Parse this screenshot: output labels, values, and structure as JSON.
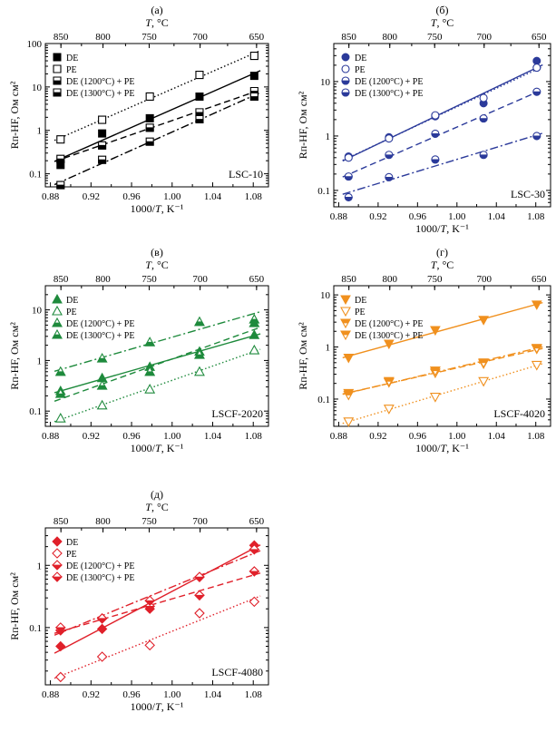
{
  "chart_data": [
    {
      "type": "scatter",
      "panel_label": "(а)",
      "sample_label": "LSC-10",
      "color": "#000000",
      "top_axis_label": "T, °C",
      "xlabel": "1000/T, K⁻¹",
      "ylabel": "Rп-HF, Ом см²",
      "xlim": [
        0.875,
        1.095
      ],
      "ylim": [
        0.05,
        100
      ],
      "yscale": "log",
      "x_ticks": [
        "0.88",
        "0.92",
        "0.96",
        "1.00",
        "1.04",
        "1.08"
      ],
      "y_ticks": [
        "0.1",
        "1",
        "10",
        "100"
      ],
      "top_ticks": [
        "850",
        "800",
        "750",
        "700",
        "650"
      ],
      "legend_position": "top-left",
      "series": [
        {
          "name": "DE",
          "marker": "filled",
          "line": "solid",
          "x": [
            0.89,
            0.931,
            0.978,
            1.027,
            1.081
          ],
          "y": [
            0.16,
            0.85,
            1.9,
            6.0,
            18
          ]
        },
        {
          "name": "PE",
          "marker": "open",
          "line": "dotted",
          "x": [
            0.89,
            0.931,
            0.978,
            1.027,
            1.081
          ],
          "y": [
            0.62,
            1.75,
            6.0,
            19,
            52
          ]
        },
        {
          "name": "DE (1200°C) + PE",
          "marker": "half",
          "line": "dashed",
          "x": [
            0.89,
            0.931,
            0.978,
            1.027,
            1.081
          ],
          "y": [
            0.22,
            0.45,
            1.15,
            2.6,
            8.0
          ]
        },
        {
          "name": "DE (1300°C) + PE",
          "marker": "half",
          "line": "dashdot",
          "x": [
            0.89,
            0.931,
            0.978,
            1.027,
            1.081
          ],
          "y": [
            0.055,
            0.21,
            0.55,
            1.8,
            6.0
          ]
        }
      ]
    },
    {
      "type": "scatter",
      "panel_label": "(б)",
      "sample_label": "LSC-30",
      "color": "#2b3a9a",
      "top_axis_label": "T, °C",
      "xlabel": "1000/T, K⁻¹",
      "ylabel": "Rп-HF, Ом см²",
      "xlim": [
        0.875,
        1.095
      ],
      "ylim": [
        0.05,
        50
      ],
      "yscale": "log",
      "x_ticks": [
        "0.88",
        "0.92",
        "0.96",
        "1.00",
        "1.04",
        "1.08"
      ],
      "y_ticks": [
        "0.1",
        "1",
        "10"
      ],
      "top_ticks": [
        "850",
        "800",
        "750",
        "700",
        "650"
      ],
      "legend_position": "top-left",
      "series": [
        {
          "name": "DE",
          "marker": "filled",
          "line": "solid",
          "x": [
            0.89,
            0.931,
            0.978,
            1.027,
            1.081
          ],
          "y": [
            0.42,
            0.95,
            2.3,
            4.0,
            24
          ]
        },
        {
          "name": "PE",
          "marker": "open",
          "line": "dotted",
          "x": [
            0.89,
            0.931,
            0.978,
            1.027,
            1.081
          ],
          "y": [
            0.4,
            0.9,
            2.4,
            5.0,
            18
          ]
        },
        {
          "name": "DE (1200°C) + PE",
          "marker": "half",
          "line": "dashed",
          "x": [
            0.89,
            0.931,
            0.978,
            1.027,
            1.081
          ],
          "y": [
            0.18,
            0.45,
            1.1,
            2.1,
            6.5
          ]
        },
        {
          "name": "DE (1300°C) + PE",
          "marker": "half",
          "line": "dashdot",
          "x": [
            0.89,
            0.931,
            0.978,
            1.027,
            1.081
          ],
          "y": [
            0.075,
            0.175,
            0.37,
            0.45,
            1.0
          ]
        }
      ]
    },
    {
      "type": "scatter",
      "panel_label": "(в)",
      "sample_label": "LSCF-2020",
      "color": "#1e8a3c",
      "top_axis_label": "T, °C",
      "xlabel": "1000/T, K⁻¹",
      "ylabel": "Rп-HF, Ом см²",
      "xlim": [
        0.875,
        1.095
      ],
      "ylim": [
        0.05,
        30
      ],
      "yscale": "log",
      "x_ticks": [
        "0.88",
        "0.92",
        "0.96",
        "1.00",
        "1.04",
        "1.08"
      ],
      "y_ticks": [
        "0.1",
        "1",
        "10"
      ],
      "top_ticks": [
        "850",
        "800",
        "750",
        "700",
        "650"
      ],
      "legend_position": "top-left",
      "series": [
        {
          "name": "DE",
          "marker": "filled",
          "line": "solid",
          "x": [
            0.89,
            0.931,
            0.978,
            1.027,
            1.081
          ],
          "y": [
            0.25,
            0.45,
            0.75,
            1.5,
            3.2
          ]
        },
        {
          "name": "PE",
          "marker": "open",
          "line": "dotted",
          "x": [
            0.89,
            0.931,
            0.978,
            1.027,
            1.081
          ],
          "y": [
            0.072,
            0.13,
            0.27,
            0.6,
            1.6
          ]
        },
        {
          "name": "DE (1200°C) + PE",
          "marker": "half",
          "line": "dashed",
          "x": [
            0.89,
            0.931,
            0.978,
            1.027,
            1.081
          ],
          "y": [
            0.22,
            0.32,
            0.6,
            1.3,
            5.5
          ]
        },
        {
          "name": "DE (1300°C) + PE",
          "marker": "half",
          "line": "dashdot",
          "x": [
            0.89,
            0.931,
            0.978,
            1.027,
            1.081
          ],
          "y": [
            0.6,
            1.1,
            2.3,
            5.8,
            6.5
          ]
        }
      ]
    },
    {
      "type": "scatter",
      "panel_label": "(г)",
      "sample_label": "LSCF-4020",
      "color": "#f0901e",
      "top_axis_label": "T, °C",
      "xlabel": "1000/T, K⁻¹",
      "ylabel": "Rп-HF, Ом см²",
      "xlim": [
        0.875,
        1.095
      ],
      "ylim": [
        0.03,
        15
      ],
      "yscale": "log",
      "x_ticks": [
        "0.88",
        "0.92",
        "0.96",
        "1.00",
        "1.04",
        "1.08"
      ],
      "y_ticks": [
        "0.1",
        "1",
        "10"
      ],
      "top_ticks": [
        "850",
        "800",
        "750",
        "700",
        "650"
      ],
      "legend_position": "top-left",
      "series": [
        {
          "name": "DE",
          "marker": "filled",
          "line": "solid",
          "x": [
            0.89,
            0.931,
            0.978,
            1.027,
            1.081
          ],
          "y": [
            0.62,
            1.15,
            2.1,
            3.3,
            6.5
          ]
        },
        {
          "name": "PE",
          "marker": "open",
          "line": "dotted",
          "x": [
            0.89,
            0.931,
            0.978,
            1.027,
            1.081
          ],
          "y": [
            0.037,
            0.065,
            0.11,
            0.22,
            0.45
          ]
        },
        {
          "name": "DE (1200°C) + PE",
          "marker": "half",
          "line": "dashed",
          "x": [
            0.89,
            0.931,
            0.978,
            1.027,
            1.081
          ],
          "y": [
            0.13,
            0.21,
            0.32,
            0.48,
            0.92
          ]
        },
        {
          "name": "DE (1300°C) + PE",
          "marker": "half",
          "line": "dashdot",
          "x": [
            0.89,
            0.931,
            0.978,
            1.027,
            1.081
          ],
          "y": [
            0.12,
            0.22,
            0.35,
            0.5,
            0.95
          ]
        }
      ]
    },
    {
      "type": "scatter",
      "panel_label": "(д)",
      "sample_label": "LSCF-4080",
      "color": "#e0202a",
      "top_axis_label": "T, °C",
      "xlabel": "1000/T, K⁻¹",
      "ylabel": "Rп-HF, Ом см²",
      "xlim": [
        0.875,
        1.095
      ],
      "ylim": [
        0.012,
        4
      ],
      "yscale": "log",
      "x_ticks": [
        "0.88",
        "0.92",
        "0.96",
        "1.00",
        "1.04",
        "1.08"
      ],
      "y_ticks": [
        "0.1",
        "1"
      ],
      "top_ticks": [
        "850",
        "800",
        "750",
        "700",
        "650"
      ],
      "legend_position": "top-left",
      "series": [
        {
          "name": "DE",
          "marker": "filled",
          "line": "solid",
          "x": [
            0.89,
            0.931,
            0.978,
            1.027,
            1.081
          ],
          "y": [
            0.05,
            0.095,
            0.2,
            0.65,
            2.1
          ]
        },
        {
          "name": "PE",
          "marker": "open",
          "line": "dotted",
          "x": [
            0.89,
            0.931,
            0.978,
            1.027,
            1.081
          ],
          "y": [
            0.016,
            0.034,
            0.052,
            0.17,
            0.26
          ]
        },
        {
          "name": "DE (1200°C) + PE",
          "marker": "half",
          "line": "dashed",
          "x": [
            0.89,
            0.931,
            0.978,
            1.027,
            1.081
          ],
          "y": [
            0.09,
            0.14,
            0.22,
            0.33,
            0.8
          ]
        },
        {
          "name": "DE (1300°C) + PE",
          "marker": "half",
          "line": "dashdot",
          "x": [
            0.89,
            0.931,
            0.978,
            1.027,
            1.081
          ],
          "y": [
            0.1,
            0.14,
            0.27,
            0.65,
            1.8
          ]
        }
      ]
    }
  ]
}
